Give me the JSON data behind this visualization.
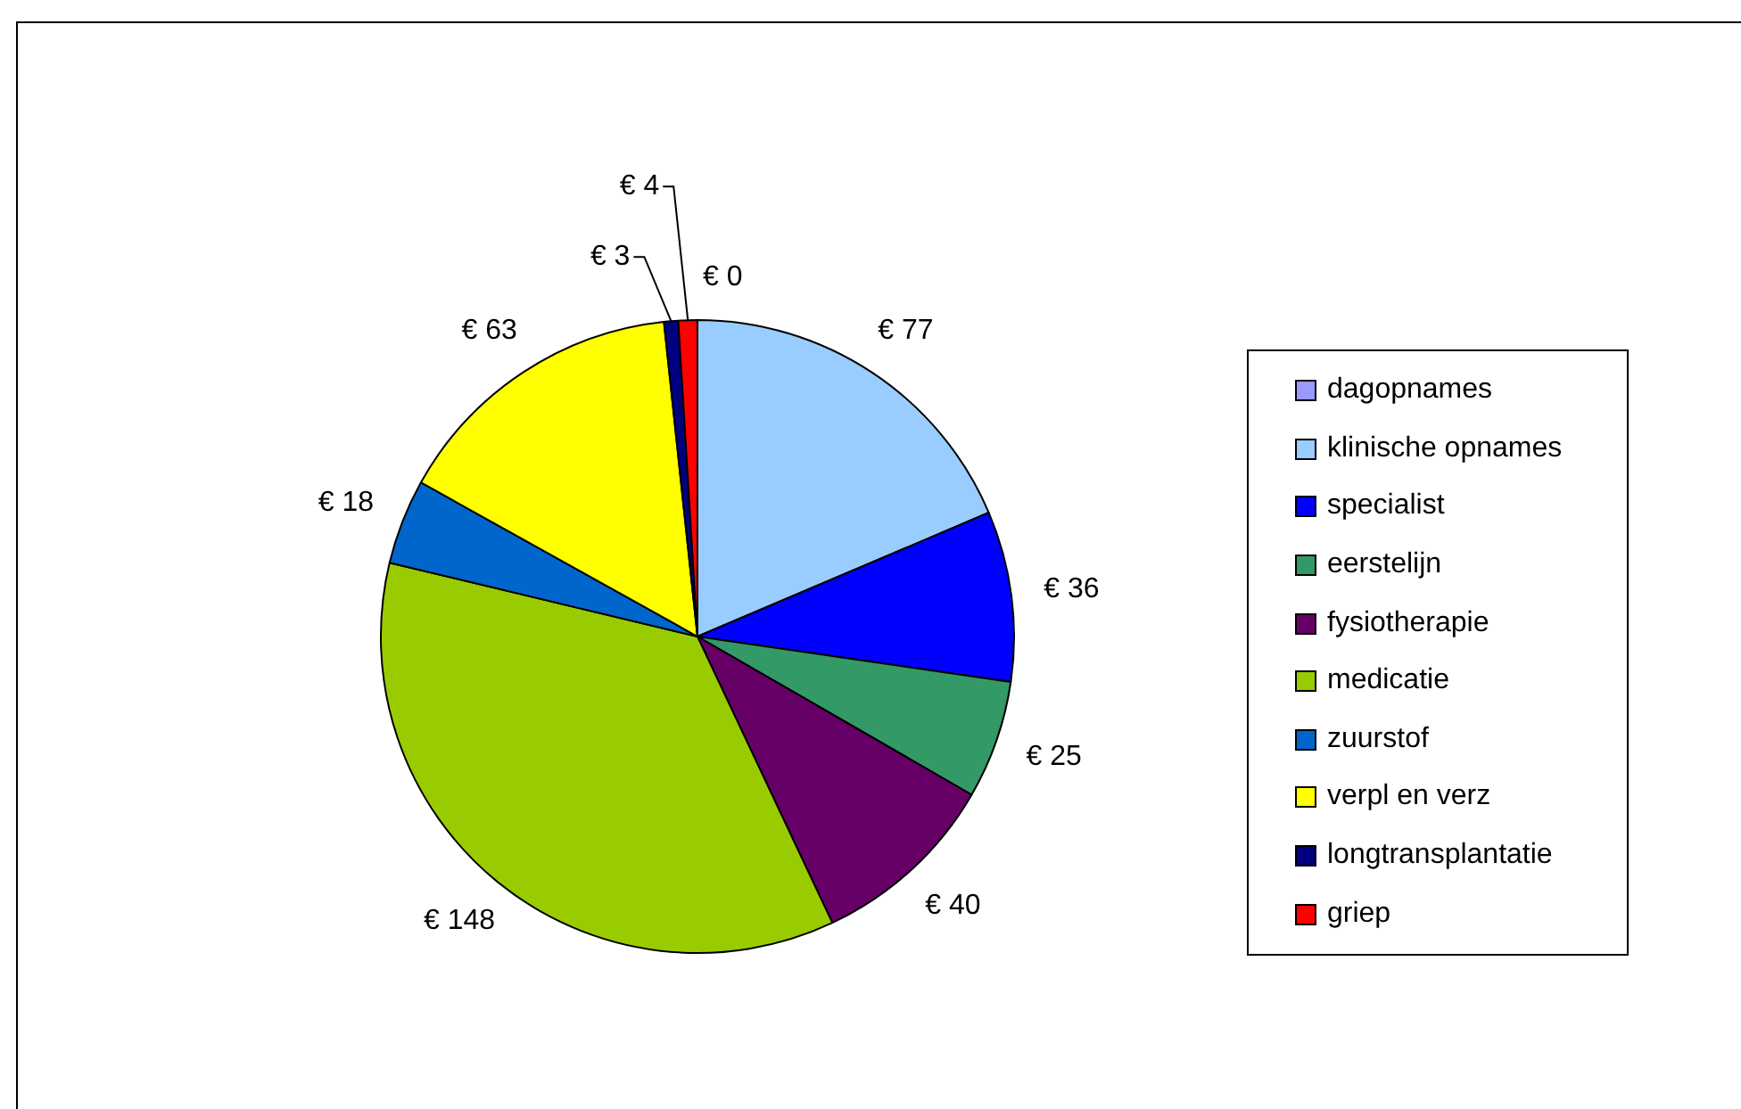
{
  "chart_data": {
    "type": "pie",
    "categories": [
      "dagopnames",
      "klinische opnames",
      "specialist",
      "eerstelijn",
      "fysiotherapie",
      "medicatie",
      "zuurstof",
      "verpl en verz",
      "longtransplantatie",
      "griep"
    ],
    "values": [
      0,
      77,
      36,
      25,
      40,
      148,
      18,
      63,
      3,
      4
    ],
    "colors": [
      "#9999ff",
      "#99ccff",
      "#0000ff",
      "#339966",
      "#660066",
      "#99cc00",
      "#0066cc",
      "#ffff00",
      "#000080",
      "#ff0000"
    ],
    "value_labels": [
      "€ 0",
      "€ 77",
      "€ 36",
      "€ 25",
      "€ 40",
      "€ 148",
      "€ 18",
      "€ 63",
      "€ 3",
      "€ 4"
    ],
    "legend": "right"
  }
}
